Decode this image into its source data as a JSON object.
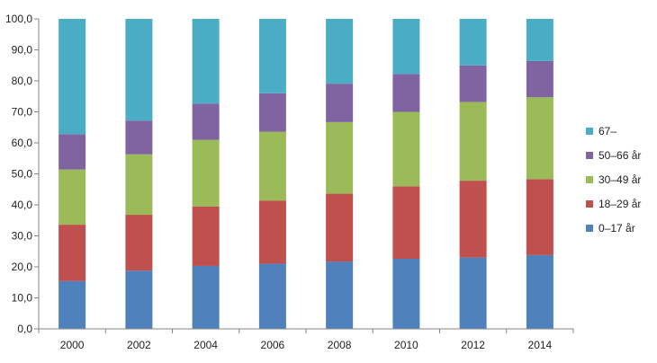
{
  "chart_data": {
    "type": "bar",
    "stacked": true,
    "categories": [
      "2000",
      "2002",
      "2004",
      "2006",
      "2008",
      "2010",
      "2012",
      "2014"
    ],
    "series": [
      {
        "name": "0–17 år",
        "color": "#4f81bd",
        "values": [
          15.4,
          18.8,
          20.3,
          21.0,
          21.7,
          22.6,
          23.0,
          23.8
        ]
      },
      {
        "name": "18–29 år",
        "color": "#c0504d",
        "values": [
          18.2,
          18.0,
          19.2,
          20.4,
          21.9,
          23.4,
          24.8,
          24.5
        ]
      },
      {
        "name": "30–49 år",
        "color": "#9bbb59",
        "values": [
          17.8,
          19.5,
          21.5,
          22.2,
          23.1,
          24.0,
          25.4,
          26.4
        ]
      },
      {
        "name": "50–66 år",
        "color": "#8064a2",
        "values": [
          11.4,
          10.9,
          11.7,
          12.4,
          12.4,
          12.2,
          11.8,
          11.7
        ]
      },
      {
        "name": "67–",
        "color": "#4bacc6",
        "values": [
          37.2,
          32.8,
          27.3,
          24.0,
          20.9,
          17.8,
          15.0,
          13.6
        ]
      }
    ],
    "y_ticks": [
      "0,0",
      "10,0",
      "20,0",
      "30,0",
      "40,0",
      "50,0",
      "60,0",
      "70,0",
      "80,0",
      "90,0",
      "100,0"
    ],
    "ylim": [
      0,
      100
    ],
    "grid": false,
    "legend_position": "right",
    "legend_order": [
      4,
      3,
      2,
      1,
      0
    ]
  }
}
